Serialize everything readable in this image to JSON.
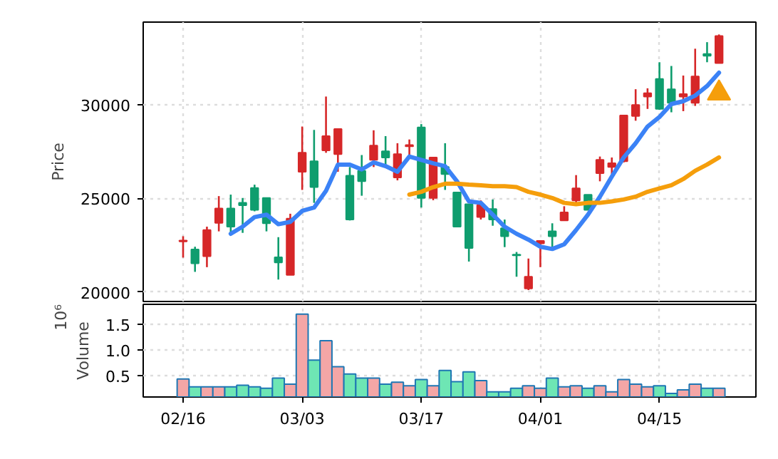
{
  "chart_data": [
    {
      "type": "candlestick",
      "ylabel": "Price",
      "ylim": [
        19500,
        34400
      ],
      "yticks": [
        20000,
        25000,
        30000
      ],
      "categories": [
        null,
        null,
        null,
        null,
        null,
        null,
        null,
        null,
        null,
        null,
        null,
        null,
        null,
        null,
        null,
        null,
        null,
        null,
        null,
        null,
        null,
        null,
        null,
        null,
        null,
        null,
        null,
        null,
        null,
        null,
        null,
        null,
        null,
        null,
        null,
        null,
        null,
        null,
        null,
        null,
        null,
        null,
        null,
        null,
        null,
        null
      ],
      "tick_labels": "y",
      "grid": true,
      "series": [
        {
          "type": "candlestick",
          "ohlc": [
            [
              22700,
              22980,
              21840,
              22750
            ],
            [
              22270,
              22420,
              21080,
              21530
            ],
            [
              21910,
              23490,
              21330,
              23310
            ],
            [
              23690,
              25120,
              23240,
              24460
            ],
            [
              24460,
              25200,
              23160,
              23490
            ],
            [
              24760,
              25020,
              23160,
              24630
            ],
            [
              25550,
              25730,
              24310,
              24380
            ],
            [
              25020,
              25020,
              23240,
              23670
            ],
            [
              21860,
              22930,
              20670,
              21580
            ],
            [
              20920,
              24180,
              20920,
              23920
            ],
            [
              26420,
              28830,
              25450,
              27430
            ],
            [
              26980,
              28650,
              24760,
              25600
            ],
            [
              27560,
              30430,
              27430,
              28320
            ],
            [
              27360,
              28700,
              26420,
              28700
            ],
            [
              26210,
              26670,
              23820,
              23870
            ],
            [
              26470,
              27310,
              25140,
              25910
            ],
            [
              27050,
              28630,
              26670,
              27810
            ],
            [
              27510,
              28320,
              26800,
              27180
            ],
            [
              26110,
              27940,
              25960,
              27360
            ],
            [
              27780,
              28140,
              27310,
              27840
            ],
            [
              28780,
              28960,
              24510,
              25020
            ],
            [
              25020,
              27180,
              24900,
              27180
            ],
            [
              26670,
              27940,
              25450,
              26290
            ],
            [
              25320,
              25320,
              23490,
              23490
            ],
            [
              24690,
              24690,
              21630,
              22350
            ],
            [
              24000,
              24890,
              23870,
              24640
            ],
            [
              24430,
              24940,
              23540,
              23870
            ],
            [
              23410,
              23870,
              22400,
              22980
            ],
            [
              22000,
              22140,
              20820,
              21960
            ],
            [
              20190,
              21790,
              20110,
              20820
            ],
            [
              22600,
              22730,
              21330,
              22730
            ],
            [
              23240,
              23670,
              22350,
              22980
            ],
            [
              23820,
              24580,
              23820,
              24250
            ],
            [
              24890,
              26240,
              24690,
              25530
            ],
            [
              25190,
              25190,
              24380,
              24380
            ],
            [
              26340,
              27230,
              25910,
              27050
            ],
            [
              26670,
              27180,
              26290,
              26870
            ],
            [
              26980,
              29420,
              26920,
              29420
            ],
            [
              29390,
              30820,
              29140,
              29980
            ],
            [
              30430,
              30870,
              29770,
              30610
            ],
            [
              31370,
              32260,
              29720,
              29770
            ],
            [
              30820,
              32060,
              29590,
              30100
            ],
            [
              30430,
              31550,
              29650,
              30560
            ],
            [
              30100,
              32980,
              29930,
              31500
            ],
            [
              32700,
              33330,
              32260,
              32600
            ],
            [
              32210,
              33740,
              32210,
              33660
            ]
          ],
          "colors": [
            "#d62728",
            "#0f9d6e",
            "#d62728",
            "#d62728",
            "#0f9d6e",
            "#0f9d6e",
            "#0f9d6e",
            "#0f9d6e",
            "#0f9d6e",
            "#d62728",
            "#d62728",
            "#0f9d6e",
            "#d62728",
            "#d62728",
            "#0f9d6e",
            "#0f9d6e",
            "#d62728",
            "#0f9d6e",
            "#d62728",
            "#d62728",
            "#0f9d6e",
            "#d62728",
            "#0f9d6e",
            "#0f9d6e",
            "#0f9d6e",
            "#d62728",
            "#0f9d6e",
            "#0f9d6e",
            "#0f9d6e",
            "#d62728",
            "#d62728",
            "#0f9d6e",
            "#d62728",
            "#d62728",
            "#0f9d6e",
            "#d62728",
            "#d62728",
            "#d62728",
            "#d62728",
            "#d62728",
            "#0f9d6e",
            "#0f9d6e",
            "#d62728",
            "#d62728",
            "#0f9d6e",
            "#d62728"
          ]
        },
        {
          "type": "line",
          "color": "#3b82f6",
          "values": [
            null,
            null,
            null,
            null,
            23110,
            23490,
            24000,
            24130,
            23620,
            23750,
            24330,
            24510,
            25400,
            26800,
            26800,
            26540,
            26920,
            26720,
            26420,
            27230,
            27050,
            26870,
            26720,
            25910,
            24840,
            24760,
            24130,
            23490,
            23110,
            22800,
            22420,
            22300,
            22550,
            23310,
            24130,
            25090,
            26160,
            27180,
            27940,
            28830,
            29340,
            30030,
            30180,
            30480,
            30990,
            31700
          ]
        },
        {
          "type": "line",
          "color": "#f59e0b",
          "values": [
            null,
            null,
            null,
            null,
            null,
            null,
            null,
            null,
            null,
            null,
            null,
            null,
            null,
            null,
            null,
            null,
            null,
            null,
            null,
            25200,
            25350,
            25600,
            25780,
            25780,
            25730,
            25700,
            25650,
            25650,
            25600,
            25350,
            25200,
            25020,
            24760,
            24690,
            24760,
            24760,
            24840,
            24940,
            25090,
            25350,
            25530,
            25700,
            26030,
            26470,
            26800,
            27180
          ]
        },
        {
          "type": "scatter",
          "marker": "triangle",
          "color": "#f59e0b",
          "values": [
            null,
            null,
            null,
            null,
            null,
            null,
            null,
            null,
            null,
            null,
            null,
            null,
            null,
            null,
            null,
            null,
            null,
            null,
            null,
            null,
            null,
            null,
            null,
            null,
            null,
            null,
            null,
            null,
            null,
            null,
            null,
            null,
            null,
            null,
            null,
            null,
            null,
            null,
            null,
            null,
            null,
            null,
            null,
            null,
            null,
            30610
          ]
        }
      ]
    },
    {
      "type": "bar",
      "ylabel": "Volume",
      "annotations": [
        "10⁶"
      ],
      "ylim": [
        0.08,
        1.89
      ],
      "yticks": [
        0.5,
        {
          "value": 1,
          "label": "1.0"
        },
        1.5
      ],
      "categories": [
        "02/16",
        null,
        null,
        null,
        null,
        null,
        null,
        null,
        null,
        null,
        "03/03",
        null,
        null,
        null,
        null,
        null,
        null,
        null,
        null,
        null,
        "03/17",
        null,
        null,
        null,
        null,
        null,
        null,
        null,
        null,
        null,
        "04/01",
        null,
        null,
        null,
        null,
        null,
        null,
        null,
        null,
        null,
        "04/15",
        null,
        null,
        null,
        null,
        null
      ],
      "grid": true,
      "values": [
        0.43,
        0.28,
        0.28,
        0.28,
        0.28,
        0.31,
        0.28,
        0.25,
        0.45,
        0.33,
        1.7,
        0.8,
        1.18,
        0.67,
        0.53,
        0.45,
        0.45,
        0.33,
        0.37,
        0.3,
        0.42,
        0.3,
        0.6,
        0.38,
        0.57,
        0.4,
        0.18,
        0.18,
        0.25,
        0.3,
        0.25,
        0.45,
        0.28,
        0.3,
        0.25,
        0.3,
        0.18,
        0.42,
        0.33,
        0.28,
        0.3,
        0.15,
        0.22,
        0.33,
        0.25,
        0.25
      ],
      "colors": [
        "#f4a6a6",
        "#6ee6b4",
        "#f4a6a6",
        "#f4a6a6",
        "#6ee6b4",
        "#6ee6b4",
        "#6ee6b4",
        "#6ee6b4",
        "#6ee6b4",
        "#f4a6a6",
        "#f4a6a6",
        "#6ee6b4",
        "#f4a6a6",
        "#f4a6a6",
        "#6ee6b4",
        "#6ee6b4",
        "#f4a6a6",
        "#6ee6b4",
        "#f4a6a6",
        "#f4a6a6",
        "#6ee6b4",
        "#f4a6a6",
        "#6ee6b4",
        "#6ee6b4",
        "#6ee6b4",
        "#f4a6a6",
        "#6ee6b4",
        "#6ee6b4",
        "#6ee6b4",
        "#f4a6a6",
        "#f4a6a6",
        "#6ee6b4",
        "#f4a6a6",
        "#f4a6a6",
        "#6ee6b4",
        "#f4a6a6",
        "#f4a6a6",
        "#f4a6a6",
        "#f4a6a6",
        "#f4a6a6",
        "#6ee6b4",
        "#6ee6b4",
        "#f4a6a6",
        "#f4a6a6",
        "#6ee6b4",
        "#f4a6a6"
      ]
    }
  ]
}
